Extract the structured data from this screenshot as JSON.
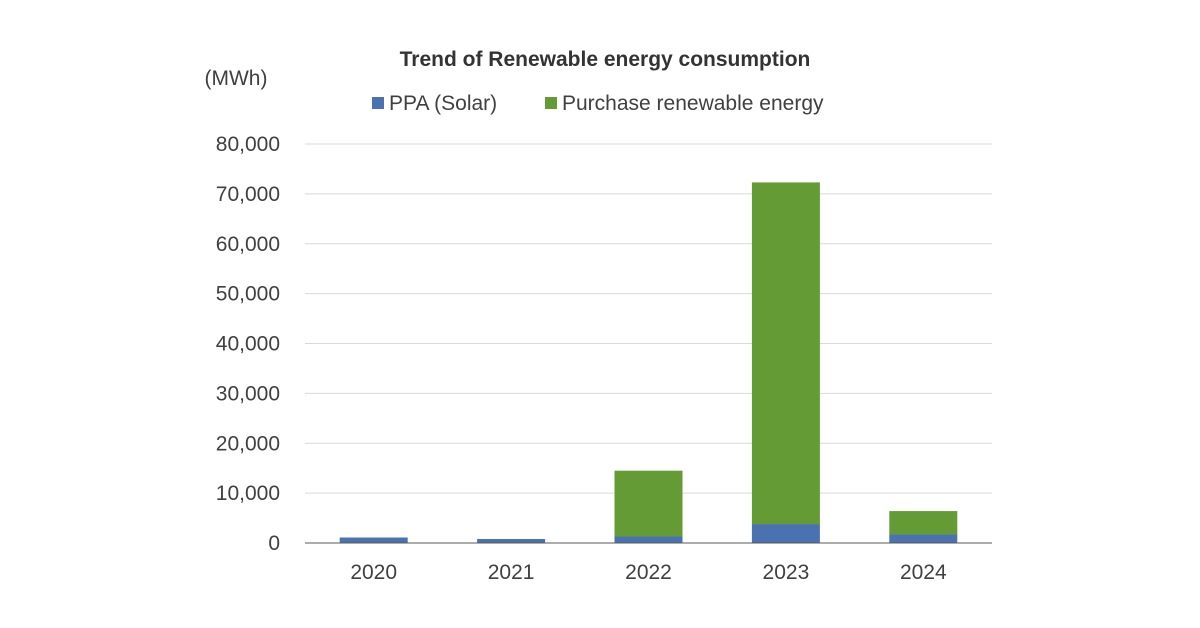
{
  "chart_data": {
    "type": "bar",
    "stacked": true,
    "title": "Trend of Renewable energy consumption",
    "unit_label": "(MWh)",
    "xlabel": "",
    "ylabel": "",
    "categories": [
      "2020",
      "2021",
      "2022",
      "2023",
      "2024"
    ],
    "series": [
      {
        "name": "PPA (Solar)",
        "color": "#4a72b0",
        "values": [
          1100,
          800,
          1300,
          3800,
          1700
        ]
      },
      {
        "name": "Purchase renewable energy",
        "color": "#659b35",
        "values": [
          0,
          0,
          13200,
          68500,
          4700
        ]
      }
    ],
    "ylim": [
      0,
      80000
    ],
    "yticks": [
      0,
      10000,
      20000,
      30000,
      40000,
      50000,
      60000,
      70000,
      80000
    ],
    "ytick_labels": [
      "0",
      "10,000",
      "20,000",
      "30,000",
      "40,000",
      "50,000",
      "60,000",
      "70,000",
      "80,000"
    ],
    "grid": true,
    "legend_position": "top"
  }
}
